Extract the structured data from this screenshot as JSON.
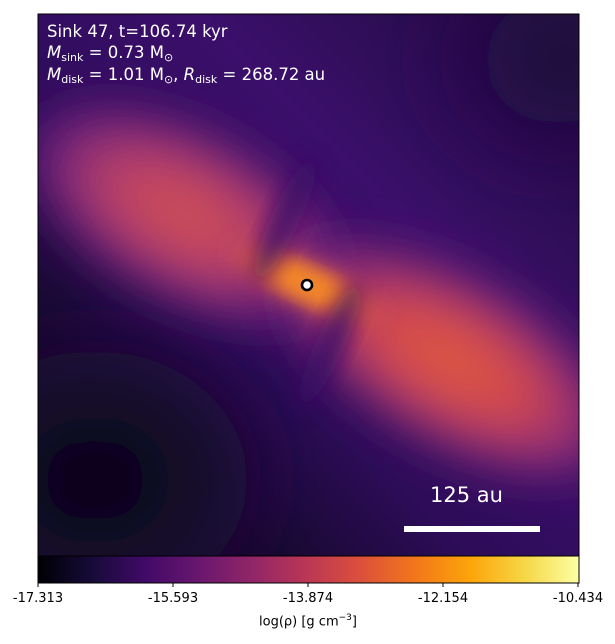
{
  "annotation": {
    "sink_line": "Sink 47, t=106.74 kyr",
    "msink_symbol": "M",
    "msink_sub": "sink",
    "msink_value": " = 0.73 M",
    "msink_unit_sub": "⊙",
    "mdisk_symbol": "M",
    "mdisk_sub": "disk",
    "mdisk_value": " = 1.01 M",
    "mdisk_unit_sub": "⊙",
    "separator": ", ",
    "rdisk_symbol": "R",
    "rdisk_sub": "disk",
    "rdisk_value": " = 268.72 au"
  },
  "scale_bar": {
    "label": "125 au"
  },
  "colorbar": {
    "colormap": "inferno",
    "min": -17.313,
    "max": -10.434,
    "ticks": [
      "-17.313",
      "-15.593",
      "-13.874",
      "-12.154",
      "-10.434"
    ],
    "label_prefix": "log(ρ) [g cm",
    "label_exp": "−3",
    "label_suffix": "]"
  },
  "colors": {
    "background_dark": "#1d0c3d",
    "disk_orange": "#e5653a",
    "sink_marker_fill": "#ffffff",
    "sink_marker_edge": "#000000"
  }
}
